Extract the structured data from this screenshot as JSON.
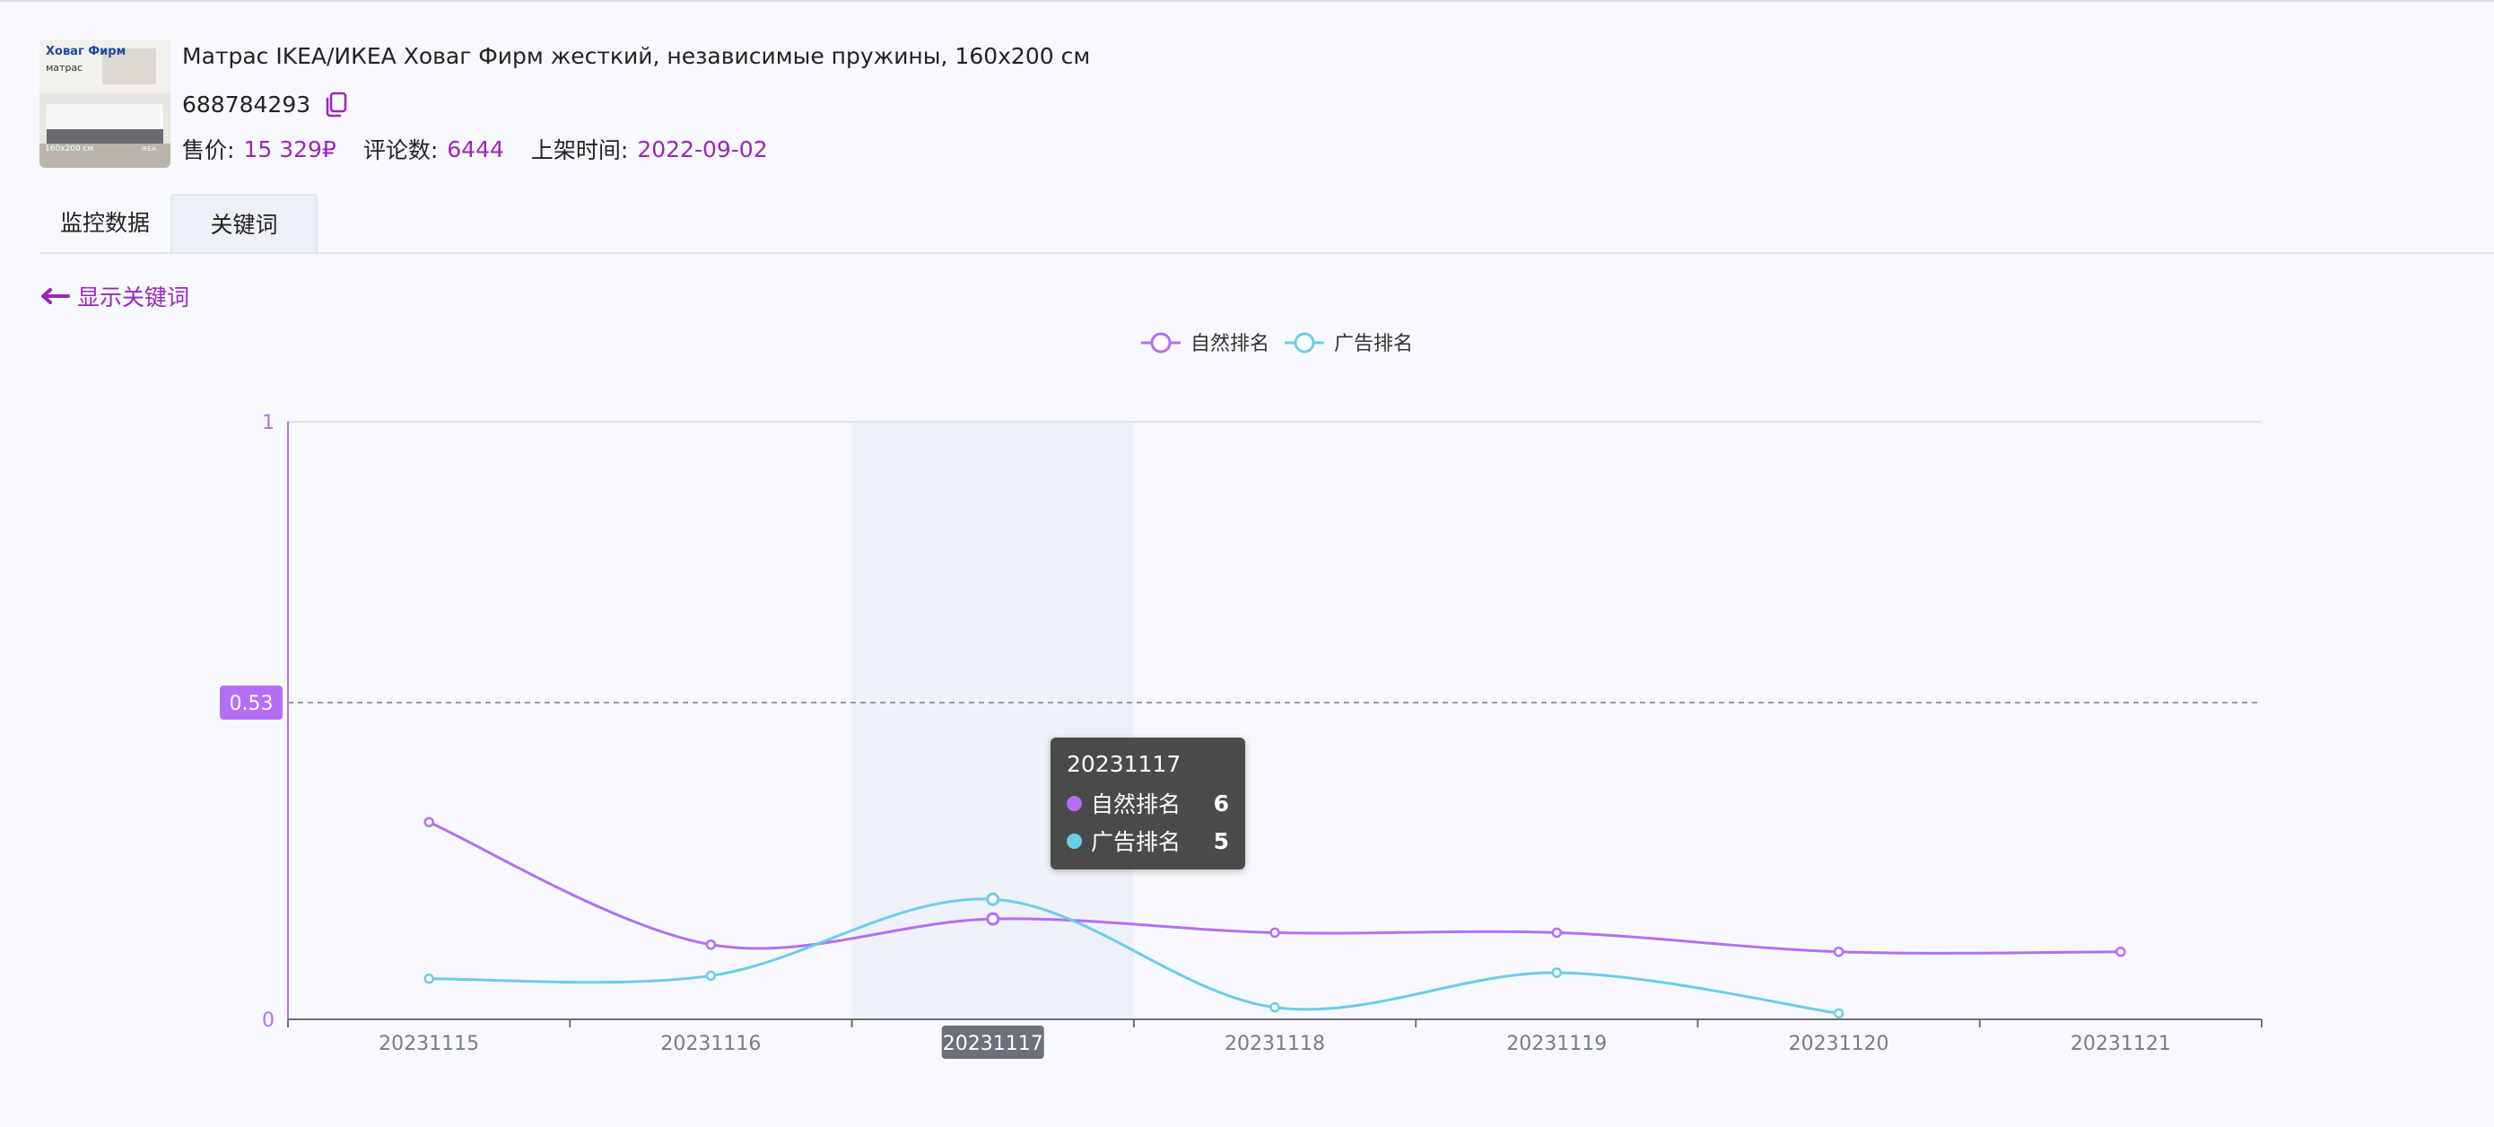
{
  "product": {
    "thumbnail": {
      "brand_text": "Ховаг Фирм",
      "sub_text": "матрас",
      "size_text": "160x200 см",
      "badge_text": "IKEA"
    },
    "title": "Матрас IKEA/ИКЕА Ховаг Фирм жесткий, независимые пружины, 160х200 см",
    "id": "688784293",
    "copy_icon": "copy-icon",
    "meta": {
      "price_label": "售价:",
      "price_value": "15 329₽",
      "reviews_label": "评论数:",
      "reviews_value": "6444",
      "listed_label": "上架时间:",
      "listed_value": "2022-09-02"
    }
  },
  "tabs": [
    {
      "label": "监控数据",
      "active": false
    },
    {
      "label": "关键词",
      "active": true
    }
  ],
  "show_keywords": {
    "label": "显示关键词",
    "icon": "arrow-left-icon"
  },
  "tooltip": {
    "title": "20231117",
    "rows": [
      {
        "name": "自然排名",
        "value": "6",
        "color": "#b56ef5"
      },
      {
        "name": "广告排名",
        "value": "5",
        "color": "#6ccde9"
      }
    ]
  },
  "colors": {
    "accent": "#9a27b8",
    "series_natural": "#b56ef5",
    "series_ad": "#6ccde9",
    "marker_badge": "#b56ef5"
  },
  "chart_data": {
    "type": "line",
    "legend_position": "top-center",
    "categories": [
      "20231115",
      "20231116",
      "20231117",
      "20231118",
      "20231119",
      "20231120",
      "20231121"
    ],
    "highlighted_category": "20231117",
    "ylim": [
      0,
      1
    ],
    "y_ticks": [
      "0",
      "1"
    ],
    "mark_line": {
      "value": 0.53,
      "label": "0.53"
    },
    "smooth": true,
    "grid": false,
    "series": [
      {
        "name": "自然排名",
        "color": "#b56ef5",
        "values": [
          0.33,
          0.125,
          0.168,
          0.145,
          0.145,
          0.113,
          0.113
        ]
      },
      {
        "name": "广告排名",
        "color": "#6ccde9",
        "values": [
          0.068,
          0.073,
          0.201,
          0.02,
          0.078,
          0.01,
          null
        ]
      }
    ]
  }
}
